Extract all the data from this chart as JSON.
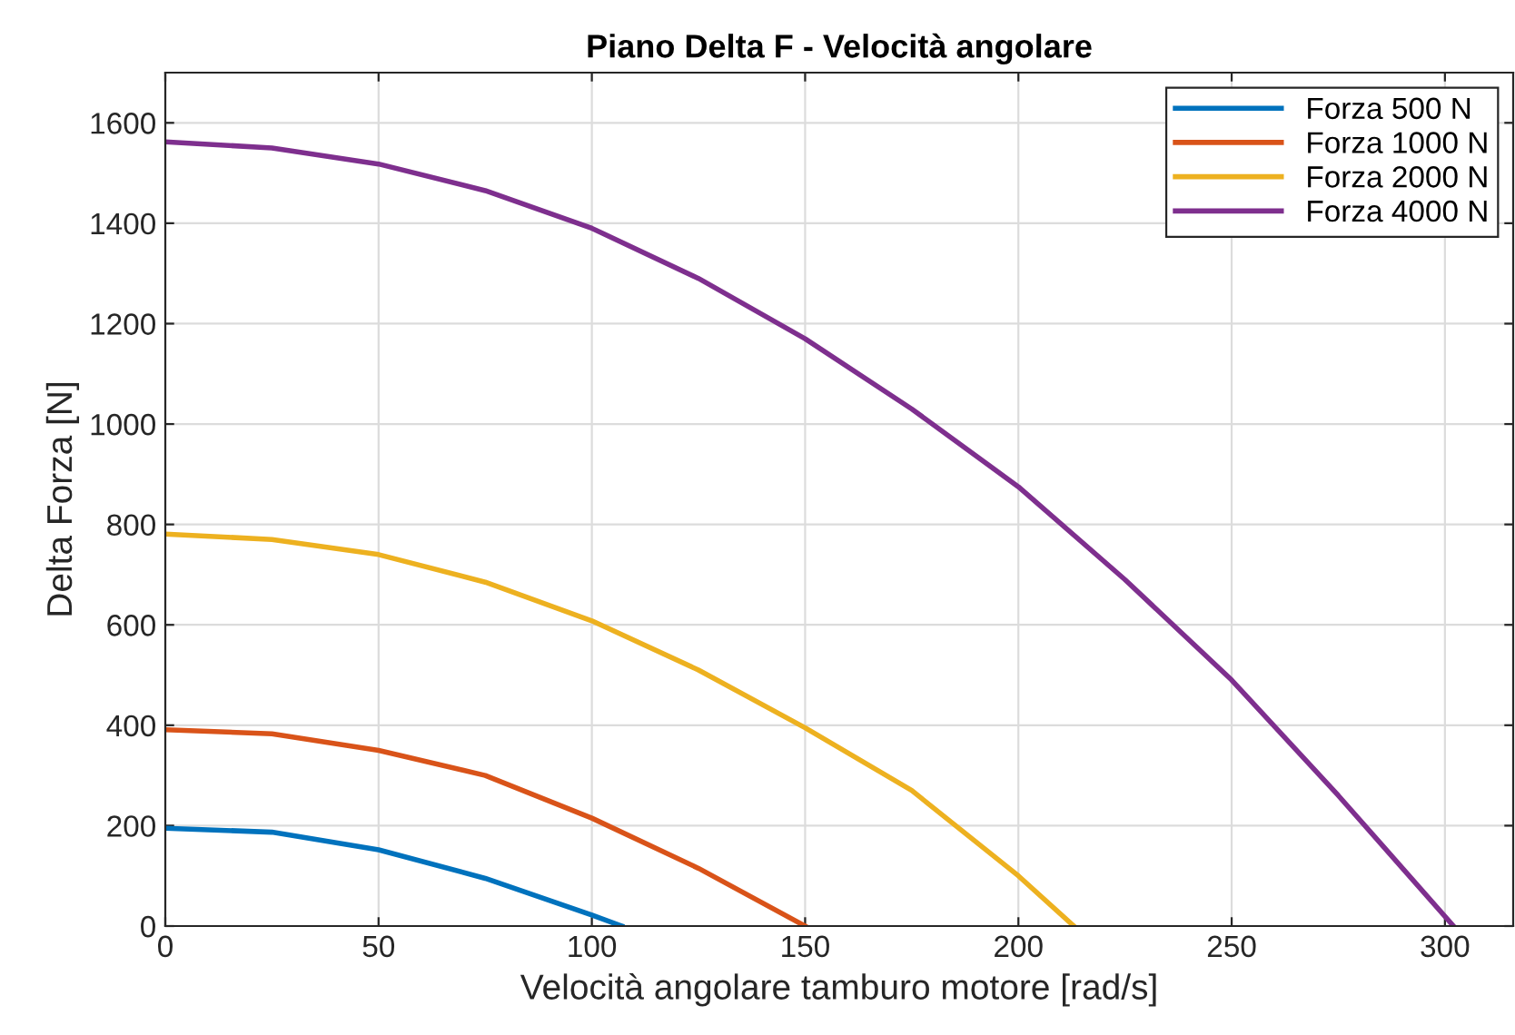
{
  "chart_data": {
    "type": "line",
    "title": "Piano Delta F - Velocità angolare",
    "xlabel": "Velocità angolare tamburo motore [rad/s]",
    "ylabel": "Delta Forza [N]",
    "xlim": [
      0,
      316
    ],
    "xticks": [
      0,
      50,
      100,
      150,
      200,
      250,
      300
    ],
    "ylim": [
      0,
      1700
    ],
    "yticks": [
      0,
      200,
      400,
      600,
      800,
      1000,
      1200,
      1400,
      1600
    ],
    "grid": true,
    "legend": "top right",
    "line_style": "solid",
    "series": [
      {
        "name": "Forza 500 N",
        "color": "#0072bd",
        "x": [
          0,
          25,
          50,
          75,
          100,
          107
        ],
        "values": [
          195,
          187,
          152,
          95,
          22,
          0
        ]
      },
      {
        "name": "Forza 1000 N",
        "color": "#d95319",
        "x": [
          0,
          25,
          50,
          75,
          100,
          125,
          150
        ],
        "values": [
          391,
          383,
          350,
          300,
          215,
          115,
          0
        ]
      },
      {
        "name": "Forza 2000 N",
        "color": "#edb120",
        "x": [
          0,
          25,
          50,
          75,
          100,
          125,
          150,
          175,
          200,
          213
        ],
        "values": [
          781,
          770,
          740,
          685,
          608,
          510,
          395,
          270,
          100,
          0
        ]
      },
      {
        "name": "Forza 4000 N",
        "color": "#7e2f8e",
        "x": [
          0,
          25,
          50,
          75,
          100,
          125,
          150,
          175,
          200,
          225,
          250,
          275,
          302
        ],
        "values": [
          1562,
          1550,
          1518,
          1465,
          1390,
          1290,
          1170,
          1030,
          875,
          690,
          490,
          260,
          0
        ]
      }
    ]
  }
}
